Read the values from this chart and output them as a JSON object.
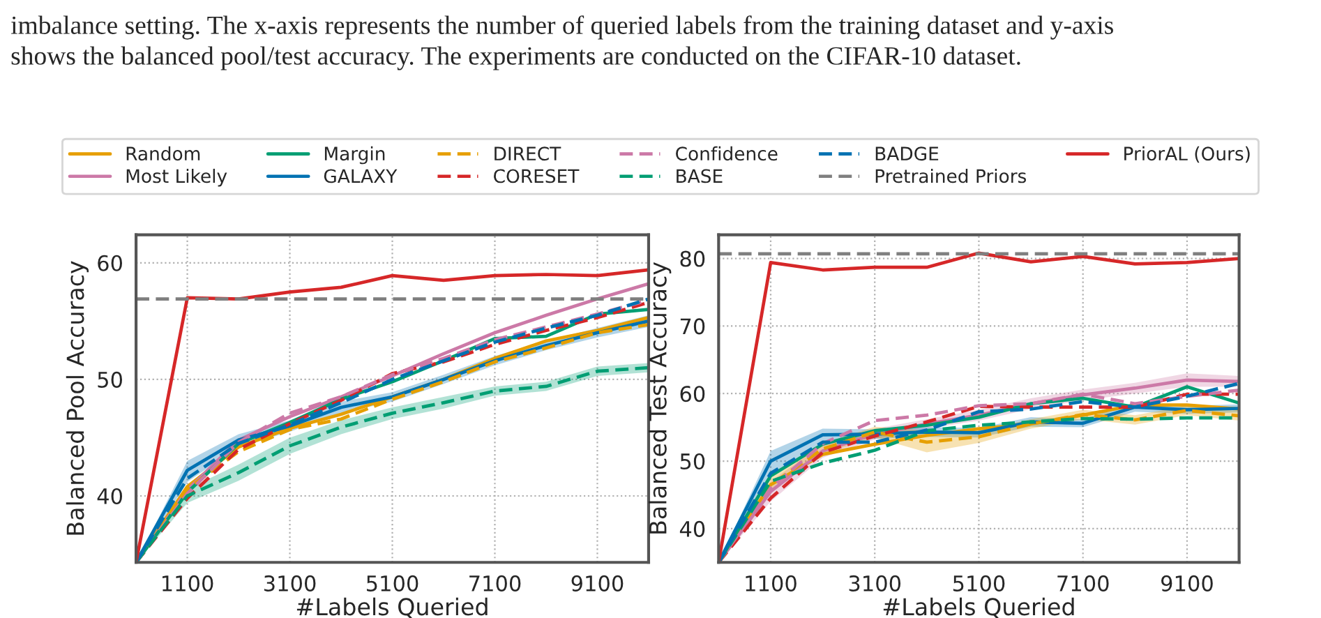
{
  "chart_data": [
    {
      "type": "line",
      "xlabel": "#Labels Queried",
      "ylabel": "Balanced Pool Accuracy",
      "annotations": [
        "imbalance setting. The x-axis represents the number of queried labels from the training dataset and y-axis",
        "shows the balanced pool/test accuracy. The experiments are conducted on the CIFAR-10 dataset."
      ],
      "x": [
        100,
        1100,
        2100,
        3100,
        4100,
        5100,
        6100,
        7100,
        8100,
        9100,
        10100
      ],
      "xlim": [
        100,
        10100
      ],
      "xticks": [
        1100,
        3100,
        5100,
        7100,
        9100
      ],
      "ylim": [
        34.3,
        62.4
      ],
      "yticks": [
        40,
        50,
        60
      ],
      "grid": true,
      "legend": "top",
      "ref_lines": [
        {
          "axis": "y",
          "value": 56.9,
          "label": "Pretrained Priors",
          "color": "#7f7f7f",
          "line_style": "dashed"
        }
      ],
      "series": [
        {
          "name": "Random",
          "color": "#e69f00",
          "line_style": "solid",
          "values": [
            34.3,
            40.8,
            44.2,
            45.8,
            47.0,
            48.5,
            50.0,
            51.8,
            53.3,
            54.2,
            55.3
          ]
        },
        {
          "name": "Most Likely",
          "color": "#cc79a7",
          "line_style": "solid",
          "values": [
            34.3,
            40.5,
            44.8,
            46.8,
            48.5,
            50.3,
            52.2,
            54.0,
            55.5,
            56.9,
            58.2
          ]
        },
        {
          "name": "Margin",
          "color": "#009e73",
          "line_style": "solid",
          "values": [
            34.3,
            40.3,
            44.5,
            46.3,
            48.3,
            49.8,
            51.6,
            53.5,
            53.7,
            55.6,
            56.0
          ]
        },
        {
          "name": "GALAXY",
          "color": "#0072b2",
          "line_style": "solid",
          "values": [
            34.3,
            42.2,
            44.8,
            46.0,
            47.6,
            48.5,
            50.0,
            51.6,
            52.9,
            54.0,
            55.0
          ],
          "lower": [
            34.3,
            41.2,
            44.2,
            45.5,
            47.1,
            48.1,
            49.6,
            51.2,
            52.5,
            53.6,
            54.5
          ],
          "upper": [
            34.3,
            43.0,
            45.3,
            46.5,
            48.1,
            48.9,
            50.4,
            52.0,
            53.3,
            54.4,
            55.5
          ]
        },
        {
          "name": "DIRECT",
          "color": "#e69f00",
          "line_style": "dashed",
          "values": [
            34.3,
            40.6,
            43.8,
            45.7,
            46.6,
            48.3,
            49.8,
            51.5,
            52.7,
            54.0,
            54.7
          ]
        },
        {
          "name": "CORESET",
          "color": "#d62728",
          "line_style": "dashed",
          "values": [
            34.3,
            39.8,
            44.0,
            46.2,
            48.2,
            50.5,
            51.5,
            53.0,
            54.2,
            55.3,
            56.6
          ]
        },
        {
          "name": "Confidence",
          "color": "#cc79a7",
          "line_style": "dashed",
          "values": [
            34.3,
            40.2,
            44.6,
            47.1,
            48.5,
            50.4,
            51.8,
            53.4,
            54.5,
            55.6,
            56.8
          ]
        },
        {
          "name": "BASE",
          "color": "#009e73",
          "line_style": "dashed",
          "values": [
            34.3,
            40.0,
            42.0,
            44.3,
            45.9,
            47.1,
            48.0,
            49.0,
            49.4,
            50.7,
            51.0
          ],
          "lower": [
            34.3,
            39.4,
            41.3,
            43.6,
            45.3,
            46.6,
            47.5,
            48.6,
            49.0,
            50.3,
            50.6
          ],
          "upper": [
            34.3,
            40.6,
            42.7,
            45.0,
            46.5,
            47.6,
            48.5,
            49.4,
            49.8,
            51.1,
            51.4
          ]
        },
        {
          "name": "BADGE",
          "color": "#0072b2",
          "line_style": "dashed",
          "values": [
            34.3,
            41.5,
            44.5,
            46.1,
            48.0,
            50.0,
            51.6,
            53.2,
            54.4,
            55.5,
            56.9
          ]
        },
        {
          "name": "PriorAL (Ours)",
          "color": "#d62728",
          "line_style": "solid",
          "values": [
            34.3,
            57.0,
            56.9,
            57.5,
            57.9,
            58.9,
            58.5,
            58.9,
            59.0,
            58.9,
            59.4
          ]
        }
      ]
    },
    {
      "type": "line",
      "xlabel": "#Labels Queried",
      "ylabel": "Balanced Test Accuracy",
      "x": [
        100,
        1100,
        2100,
        3100,
        4100,
        5100,
        6100,
        7100,
        8100,
        9100,
        10100
      ],
      "xlim": [
        100,
        10100
      ],
      "xticks": [
        1100,
        3100,
        5100,
        7100,
        9100
      ],
      "ylim": [
        35,
        83.5
      ],
      "yticks": [
        40,
        50,
        60,
        70,
        80
      ],
      "grid": true,
      "ref_lines": [
        {
          "axis": "y",
          "value": 80.7,
          "color": "#7f7f7f",
          "line_style": "dashed"
        }
      ],
      "series": [
        {
          "color": "#e69f00",
          "line_style": "solid",
          "values": [
            35,
            46.5,
            51.0,
            52.5,
            53.8,
            54.8,
            55.5,
            56.8,
            58.3,
            58.3,
            57.7
          ]
        },
        {
          "color": "#cc79a7",
          "line_style": "solid",
          "values": [
            35,
            45.5,
            51.5,
            54.0,
            55.5,
            56.8,
            58.5,
            59.8,
            60.8,
            62.0,
            61.8
          ],
          "lower": [
            35,
            44.0,
            50.5,
            53.2,
            54.8,
            56.0,
            57.7,
            59.0,
            60.0,
            61.0,
            61.0
          ],
          "upper": [
            35,
            47.0,
            52.5,
            54.8,
            56.2,
            57.6,
            59.3,
            60.6,
            61.6,
            63.0,
            62.6
          ]
        },
        {
          "color": "#009e73",
          "line_style": "solid",
          "values": [
            35,
            47.8,
            52.5,
            54.5,
            55.3,
            56.5,
            58.5,
            59.3,
            58.0,
            61.0,
            58.6
          ]
        },
        {
          "color": "#0072b2",
          "line_style": "solid",
          "values": [
            35,
            50.0,
            53.9,
            54.0,
            54.3,
            54.2,
            55.8,
            55.6,
            58.0,
            57.6,
            57.8
          ],
          "lower": [
            35,
            48.0,
            52.8,
            53.3,
            53.6,
            53.5,
            55.1,
            55.0,
            57.3,
            57.0,
            57.2
          ],
          "upper": [
            35,
            51.5,
            54.8,
            54.7,
            55.0,
            54.9,
            56.5,
            56.2,
            58.7,
            58.2,
            58.4
          ]
        },
        {
          "color": "#e69f00",
          "line_style": "dashed",
          "values": [
            35,
            46.5,
            51.8,
            54.3,
            52.8,
            53.6,
            55.5,
            56.9,
            56.1,
            57.5,
            56.7
          ],
          "lower": [
            35,
            45.5,
            51.0,
            53.5,
            51.3,
            52.7,
            54.8,
            56.2,
            55.4,
            56.8,
            56.0
          ],
          "upper": [
            35,
            47.5,
            52.6,
            55.1,
            54.5,
            54.5,
            56.2,
            57.6,
            56.8,
            58.2,
            57.4
          ]
        },
        {
          "color": "#d62728",
          "line_style": "dashed",
          "values": [
            35,
            44.5,
            51.3,
            53.7,
            55.8,
            58.1,
            58.0,
            58.0,
            58.0,
            59.9,
            59.9
          ]
        },
        {
          "color": "#cc79a7",
          "line_style": "dashed",
          "values": [
            35,
            46.0,
            52.6,
            56.0,
            56.8,
            58.2,
            58.5,
            59.9,
            58.5,
            59.6,
            60.5
          ]
        },
        {
          "color": "#009e73",
          "line_style": "dashed",
          "values": [
            35,
            47.0,
            49.7,
            51.6,
            54.5,
            55.3,
            55.8,
            56.3,
            56.2,
            56.4,
            56.4
          ]
        },
        {
          "color": "#0072b2",
          "line_style": "dashed",
          "values": [
            35,
            48.2,
            52.8,
            52.8,
            54.6,
            57.3,
            57.7,
            58.8,
            58.0,
            59.6,
            61.5
          ]
        },
        {
          "color": "#d62728",
          "line_style": "solid",
          "values": [
            35,
            79.4,
            78.3,
            78.7,
            78.7,
            80.8,
            79.5,
            80.3,
            79.2,
            79.4,
            80.0
          ]
        }
      ]
    }
  ]
}
